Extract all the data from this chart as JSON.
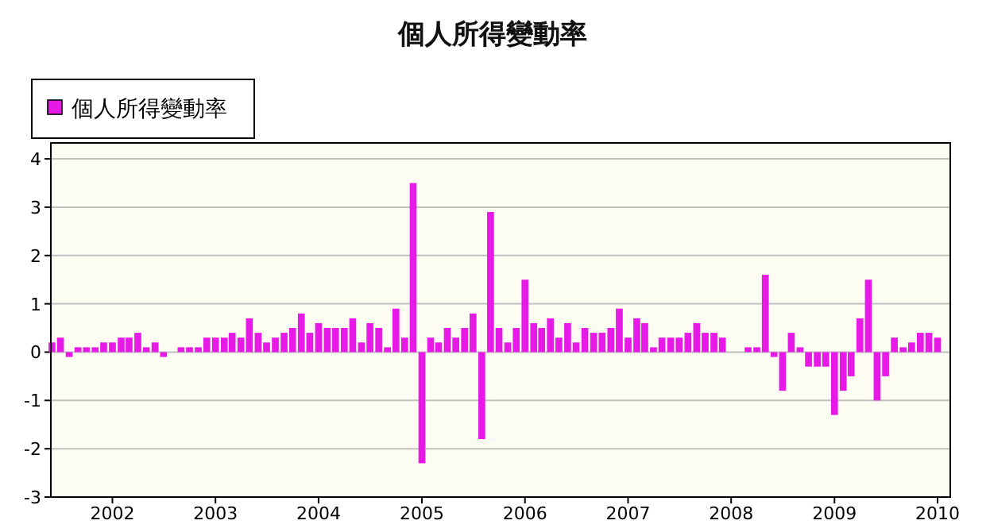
{
  "chart_data": {
    "type": "bar",
    "title": "個人所得變動率",
    "x": [
      "2001-06",
      "2001-07",
      "2001-08",
      "2001-09",
      "2001-10",
      "2001-11",
      "2001-12",
      "2002-01",
      "2002-02",
      "2002-03",
      "2002-04",
      "2002-05",
      "2002-06",
      "2002-07",
      "2002-08",
      "2002-09",
      "2002-10",
      "2002-11",
      "2002-12",
      "2003-01",
      "2003-02",
      "2003-03",
      "2003-04",
      "2003-05",
      "2003-06",
      "2003-07",
      "2003-08",
      "2003-09",
      "2003-10",
      "2003-11",
      "2003-12",
      "2004-01",
      "2004-02",
      "2004-03",
      "2004-04",
      "2004-05",
      "2004-06",
      "2004-07",
      "2004-08",
      "2004-09",
      "2004-10",
      "2004-11",
      "2004-12",
      "2005-01",
      "2005-02",
      "2005-03",
      "2005-04",
      "2005-05",
      "2005-06",
      "2005-07",
      "2005-08",
      "2005-09",
      "2005-10",
      "2005-11",
      "2005-12",
      "2006-01",
      "2006-02",
      "2006-03",
      "2006-04",
      "2006-05",
      "2006-06",
      "2006-07",
      "2006-08",
      "2006-09",
      "2006-10",
      "2006-11",
      "2006-12",
      "2007-01",
      "2007-02",
      "2007-03",
      "2007-04",
      "2007-05",
      "2007-06",
      "2007-07",
      "2007-08",
      "2007-09",
      "2007-10",
      "2007-11",
      "2007-12",
      "2008-01",
      "2008-02",
      "2008-03",
      "2008-04",
      "2008-05",
      "2008-06",
      "2008-07",
      "2008-08",
      "2008-09",
      "2008-10",
      "2008-11",
      "2008-12",
      "2009-01",
      "2009-02",
      "2009-03",
      "2009-04",
      "2009-05",
      "2009-06",
      "2009-07",
      "2009-08",
      "2009-09",
      "2009-10",
      "2009-11",
      "2009-12",
      "2010-01"
    ],
    "series": [
      {
        "name": "個人所得變動率",
        "color": "#e619e6",
        "values": [
          0.2,
          0.3,
          -0.1,
          0.1,
          0.1,
          0.1,
          0.2,
          0.2,
          0.3,
          0.3,
          0.4,
          0.1,
          0.2,
          -0.1,
          0,
          0.1,
          0.1,
          0.1,
          0.3,
          0.3,
          0.3,
          0.4,
          0.3,
          0.7,
          0.4,
          0.2,
          0.3,
          0.4,
          0.5,
          0.8,
          0.4,
          0.6,
          0.5,
          0.5,
          0.5,
          0.7,
          0.2,
          0.6,
          0.5,
          0.1,
          0.9,
          0.3,
          3.5,
          -2.3,
          0.3,
          0.2,
          0.5,
          0.3,
          0.5,
          0.8,
          -1.8,
          2.9,
          0.5,
          0.2,
          0.5,
          1.5,
          0.6,
          0.5,
          0.7,
          0.3,
          0.6,
          0.2,
          0.5,
          0.4,
          0.4,
          0.5,
          0.9,
          0.3,
          0.7,
          0.6,
          0.1,
          0.3,
          0.3,
          0.3,
          0.4,
          0.6,
          0.4,
          0.4,
          0.3,
          0,
          0,
          0.1,
          0.1,
          1.6,
          -0.1,
          -0.8,
          0.4,
          0.1,
          -0.3,
          -0.3,
          -0.3,
          -1.3,
          -0.8,
          -0.5,
          0.7,
          1.5,
          -1.0,
          -0.5,
          0.3,
          0.1,
          0.2,
          0.4,
          0.4,
          0.3
        ]
      }
    ],
    "xlim": [
      "2001-05-28",
      "2010-02-15"
    ],
    "xticks": [
      "2002",
      "2003",
      "2004",
      "2005",
      "2006",
      "2007",
      "2008",
      "2009",
      "2010"
    ],
    "ylim": [
      -3,
      4.33
    ],
    "yticks": [
      -3,
      -2,
      -1,
      0,
      1,
      2,
      3,
      4
    ],
    "grid": "y",
    "legend": "top left"
  }
}
